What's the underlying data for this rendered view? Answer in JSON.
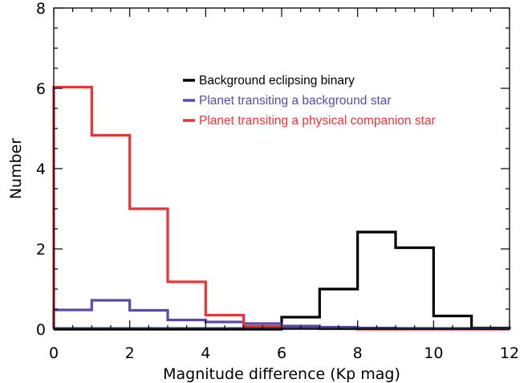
{
  "chart_data": {
    "type": "step-histogram",
    "title": "",
    "xlabel": "Magnitude difference (Kp mag)",
    "ylabel": "Number",
    "xlim": [
      0,
      12
    ],
    "ylim": [
      0,
      8
    ],
    "xticks": [
      0,
      2,
      4,
      6,
      8,
      10,
      12
    ],
    "yticks": [
      0,
      2,
      4,
      6,
      8
    ],
    "bin_edges": [
      0,
      1,
      2,
      3,
      4,
      5,
      6,
      7,
      8,
      9,
      10,
      11,
      12
    ],
    "legend_position": "upper-right",
    "series": [
      {
        "name": "Background eclipsing binary",
        "color": "#000000",
        "values": [
          0,
          0,
          0,
          0,
          0,
          0,
          0.3,
          1.0,
          2.42,
          2.03,
          0.33,
          0.03
        ]
      },
      {
        "name": "Planet transiting a background star",
        "color": "#5b4aa6",
        "values": [
          0.48,
          0.72,
          0.47,
          0.23,
          0.18,
          0.14,
          0.08,
          0.05,
          0.03,
          0.02,
          0.01,
          0.01
        ]
      },
      {
        "name": "Planet transiting a physical companion star",
        "color": "#ea3438",
        "values": [
          6.03,
          4.83,
          3.0,
          1.18,
          0.35,
          0.07,
          0.02,
          0.01,
          0,
          0,
          0,
          0
        ]
      }
    ]
  }
}
